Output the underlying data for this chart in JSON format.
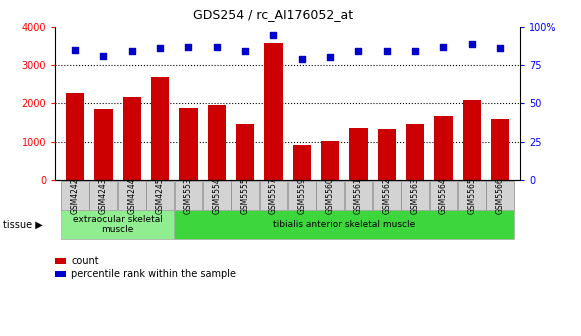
{
  "title": "GDS254 / rc_AI176052_at",
  "categories": [
    "GSM4242",
    "GSM4243",
    "GSM4244",
    "GSM4245",
    "GSM5553",
    "GSM5554",
    "GSM5555",
    "GSM5557",
    "GSM5559",
    "GSM5560",
    "GSM5561",
    "GSM5562",
    "GSM5563",
    "GSM5564",
    "GSM5565",
    "GSM5566"
  ],
  "counts": [
    2280,
    1850,
    2170,
    2700,
    1880,
    1950,
    1460,
    3580,
    920,
    1010,
    1360,
    1330,
    1460,
    1670,
    2090,
    1580
  ],
  "percentiles": [
    85,
    81,
    84,
    86,
    87,
    87,
    84,
    95,
    79,
    80,
    84,
    84,
    84,
    87,
    89,
    86
  ],
  "bar_color": "#cc0000",
  "dot_color": "#0000cc",
  "ylim_left": [
    0,
    4000
  ],
  "ylim_right": [
    0,
    100
  ],
  "yticks_left": [
    0,
    1000,
    2000,
    3000,
    4000
  ],
  "yticks_right": [
    0,
    25,
    50,
    75,
    100
  ],
  "tissue_groups": [
    {
      "label": "extraocular skeletal\nmuscle",
      "start": 0,
      "end": 4,
      "color": "#90ee90"
    },
    {
      "label": "tibialis anterior skeletal muscle",
      "start": 4,
      "end": 16,
      "color": "#3dd63d"
    }
  ],
  "background_color": "#ffffff",
  "tick_label_bg": "#d3d3d3"
}
